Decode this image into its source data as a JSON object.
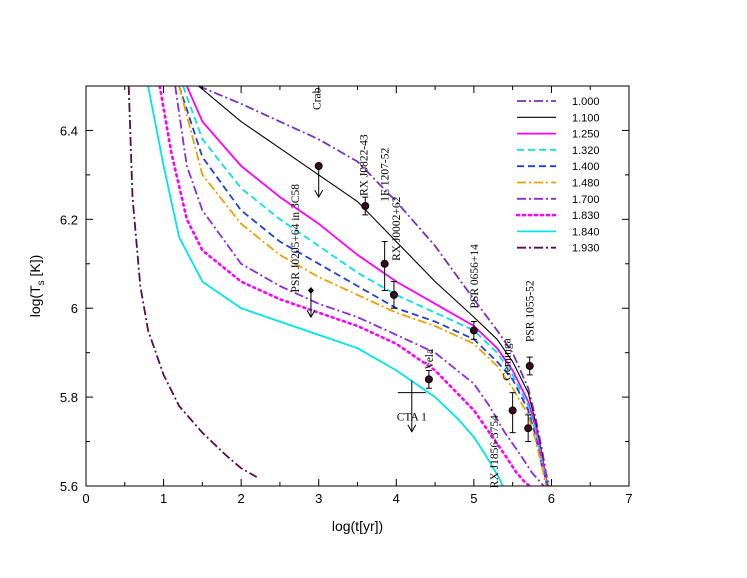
{
  "chart_data": {
    "type": "line",
    "xlabel": "log(t[yr])",
    "ylabel_main": "log(T",
    "ylabel_sub": "s",
    "ylabel_tail": " [K])",
    "xlim": [
      0,
      7
    ],
    "ylim": [
      5.6,
      6.5
    ],
    "xticks": [
      0,
      1,
      2,
      3,
      4,
      5,
      6,
      7
    ],
    "xtick_labels": [
      "0",
      "1",
      "2",
      "3",
      "4",
      "5",
      "6",
      "7"
    ],
    "yticks": [
      5.6,
      5.8,
      6.0,
      6.2,
      6.4
    ],
    "ytick_labels": [
      "5.6",
      "5.8",
      "6",
      "6.2",
      "6.4"
    ],
    "legend_position": "top-right",
    "series": [
      {
        "name": "1.000",
        "color": "#7b2fbe",
        "dash": "dashdot",
        "x": [
          1.45,
          2,
          2.5,
          3,
          3.5,
          4,
          4.5,
          5,
          5.3,
          5.5,
          5.7,
          5.8,
          5.88,
          5.93,
          5.97
        ],
        "y": [
          6.5,
          6.46,
          6.42,
          6.38,
          6.33,
          6.24,
          6.14,
          6.02,
          5.95,
          5.9,
          5.82,
          5.75,
          5.68,
          5.63,
          5.6
        ]
      },
      {
        "name": "1.100",
        "color": "#000000",
        "dash": "solid",
        "x": [
          1.45,
          2,
          2.5,
          3,
          3.5,
          4,
          4.5,
          5,
          5.3,
          5.5,
          5.7,
          5.8,
          5.88,
          5.93,
          5.96
        ],
        "y": [
          6.5,
          6.42,
          6.36,
          6.3,
          6.24,
          6.15,
          6.06,
          5.98,
          5.93,
          5.88,
          5.81,
          5.74,
          5.67,
          5.62,
          5.6
        ]
      },
      {
        "name": "1.250",
        "color": "#ff00ff",
        "dash": "solid",
        "x": [
          1.3,
          1.5,
          2,
          2.5,
          3,
          3.5,
          4,
          4.5,
          5,
          5.3,
          5.5,
          5.7,
          5.8,
          5.88,
          5.93,
          5.95
        ],
        "y": [
          6.5,
          6.42,
          6.32,
          6.25,
          6.19,
          6.12,
          6.06,
          6.01,
          5.96,
          5.91,
          5.86,
          5.79,
          5.73,
          5.66,
          5.62,
          5.6
        ]
      },
      {
        "name": "1.320",
        "color": "#00e5e5",
        "dash": "dashed",
        "x": [
          1.25,
          1.5,
          2,
          2.5,
          3,
          3.5,
          4,
          4.5,
          5,
          5.3,
          5.5,
          5.7,
          5.8,
          5.87,
          5.92,
          5.94
        ],
        "y": [
          6.5,
          6.38,
          6.27,
          6.2,
          6.14,
          6.08,
          6.03,
          5.99,
          5.95,
          5.9,
          5.85,
          5.78,
          5.72,
          5.66,
          5.62,
          5.6
        ]
      },
      {
        "name": "1.400",
        "color": "#1f3fe0",
        "dash": "dashed",
        "x": [
          1.2,
          1.5,
          2,
          2.5,
          3,
          3.5,
          4,
          4.5,
          5,
          5.3,
          5.5,
          5.7,
          5.8,
          5.87,
          5.92,
          5.94
        ],
        "y": [
          6.5,
          6.34,
          6.22,
          6.15,
          6.1,
          6.05,
          6.0,
          5.97,
          5.93,
          5.88,
          5.84,
          5.77,
          5.71,
          5.65,
          5.62,
          5.6
        ]
      },
      {
        "name": "1.480",
        "color": "#f0a000",
        "dash": "dashdot",
        "x": [
          1.2,
          1.5,
          2,
          2.5,
          3,
          3.5,
          4,
          4.5,
          5,
          5.3,
          5.5,
          5.7,
          5.8,
          5.87,
          5.92,
          5.93
        ],
        "y": [
          6.5,
          6.3,
          6.19,
          6.12,
          6.07,
          6.03,
          5.99,
          5.96,
          5.92,
          5.87,
          5.82,
          5.76,
          5.7,
          5.65,
          5.61,
          5.6
        ]
      },
      {
        "name": "1.700",
        "color": "#8a2be2",
        "dash": "dashdot",
        "x": [
          1.15,
          1.3,
          1.5,
          2,
          2.5,
          3,
          3.5,
          4,
          4.5,
          5,
          5.2,
          5.4,
          5.6,
          5.75,
          5.85,
          5.9
        ],
        "y": [
          6.5,
          6.32,
          6.22,
          6.1,
          6.05,
          6.01,
          5.98,
          5.94,
          5.9,
          5.83,
          5.78,
          5.72,
          5.67,
          5.63,
          5.61,
          5.6
        ]
      },
      {
        "name": "1.830",
        "color": "#ff00ff",
        "dash": "dotted",
        "x": [
          0.95,
          1.1,
          1.3,
          1.5,
          2,
          2.5,
          3,
          3.5,
          4,
          4.5,
          5,
          5.2,
          5.4,
          5.55,
          5.65,
          5.72
        ],
        "y": [
          6.5,
          6.35,
          6.2,
          6.13,
          6.06,
          6.02,
          5.99,
          5.96,
          5.92,
          5.86,
          5.77,
          5.72,
          5.67,
          5.63,
          5.61,
          5.6
        ]
      },
      {
        "name": "1.840",
        "color": "#00e5e5",
        "dash": "solid",
        "x": [
          0.8,
          1.0,
          1.2,
          1.5,
          2,
          2.5,
          3,
          3.5,
          4,
          4.5,
          4.8,
          5.0,
          5.15,
          5.25,
          5.32,
          5.37
        ],
        "y": [
          6.5,
          6.32,
          6.16,
          6.06,
          6.0,
          5.97,
          5.94,
          5.91,
          5.86,
          5.8,
          5.75,
          5.71,
          5.67,
          5.64,
          5.62,
          5.6
        ]
      },
      {
        "name": "1.930",
        "color": "#5a0a45",
        "dash": "dashdot",
        "x": [
          0.55,
          0.6,
          0.7,
          0.8,
          1.0,
          1.2,
          1.5,
          1.8,
          2.0,
          2.2
        ],
        "y": [
          6.5,
          6.25,
          6.05,
          5.95,
          5.85,
          5.78,
          5.72,
          5.67,
          5.64,
          5.62
        ]
      }
    ],
    "observations": [
      {
        "label": "Crab",
        "x": 3.0,
        "y": 6.32,
        "kind": "upper_limit",
        "arrow_to": 6.25
      },
      {
        "label": "RX J0822-43",
        "x": 3.6,
        "y": 6.23,
        "err_low": 0.02,
        "err_high": 0.02
      },
      {
        "label": "1E 1207-52",
        "x": 3.85,
        "y": 6.1,
        "err_low": 0.06,
        "err_high": 0.05
      },
      {
        "label": "RX J0002+62",
        "x": 3.97,
        "y": 6.03,
        "err_low": 0.03,
        "err_high": 0.03
      },
      {
        "label": "PSR J0205+64 in 3C58",
        "x": 2.9,
        "y": 6.04,
        "kind": "upper_limit",
        "arrow_to": 5.98,
        "marker": "diamond"
      },
      {
        "label": "PSR 0656+14",
        "x": 5.0,
        "y": 5.95,
        "err_low": 0.02,
        "err_high": 0.02
      },
      {
        "label": "PSR 1055-52",
        "x": 5.72,
        "y": 5.87,
        "err_low": 0.02,
        "err_high": 0.02
      },
      {
        "label": "Vela",
        "x": 4.42,
        "y": 5.84,
        "err_low": 0.02,
        "err_high": 0.02
      },
      {
        "label": "Geminga",
        "x": 5.5,
        "y": 5.77,
        "err_low": 0.05,
        "err_high": 0.04
      },
      {
        "label": "RX J1856-3754",
        "x": 5.7,
        "y": 5.73,
        "err_low": 0.03,
        "err_high": 0.03
      },
      {
        "label": "CTA 1",
        "x": 4.2,
        "y": 5.81,
        "kind": "cross_limit",
        "arrow_to": 5.74
      }
    ]
  }
}
